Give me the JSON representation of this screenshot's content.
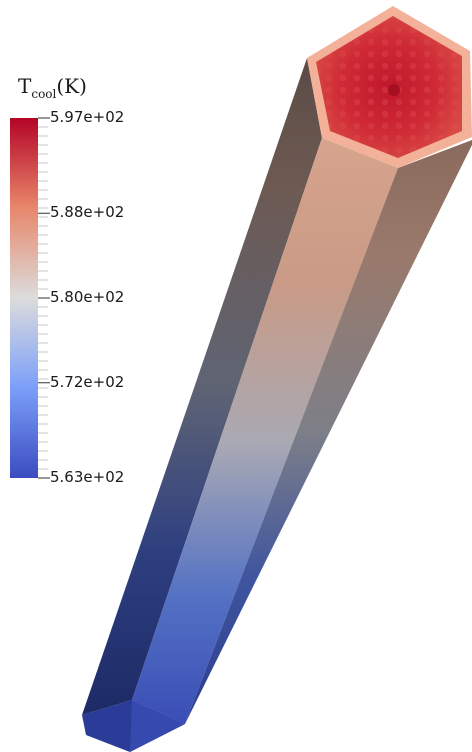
{
  "colorbar": {
    "title_main": "T",
    "title_sub": "cool",
    "title_unit": "(K)",
    "labels": [
      {
        "text": "5.97e+02",
        "value": 597
      },
      {
        "text": "5.88e+02",
        "value": 588
      },
      {
        "text": "5.80e+02",
        "value": 580
      },
      {
        "text": "5.72e+02",
        "value": 572
      },
      {
        "text": "5.63e+02",
        "value": 563
      }
    ],
    "range": [
      563,
      597
    ],
    "colors": {
      "max": "#b40426",
      "upper": "#e8876b",
      "mid": "#dcdcdc",
      "lower": "#7b9ff9",
      "min": "#3b4cc0"
    }
  }
}
